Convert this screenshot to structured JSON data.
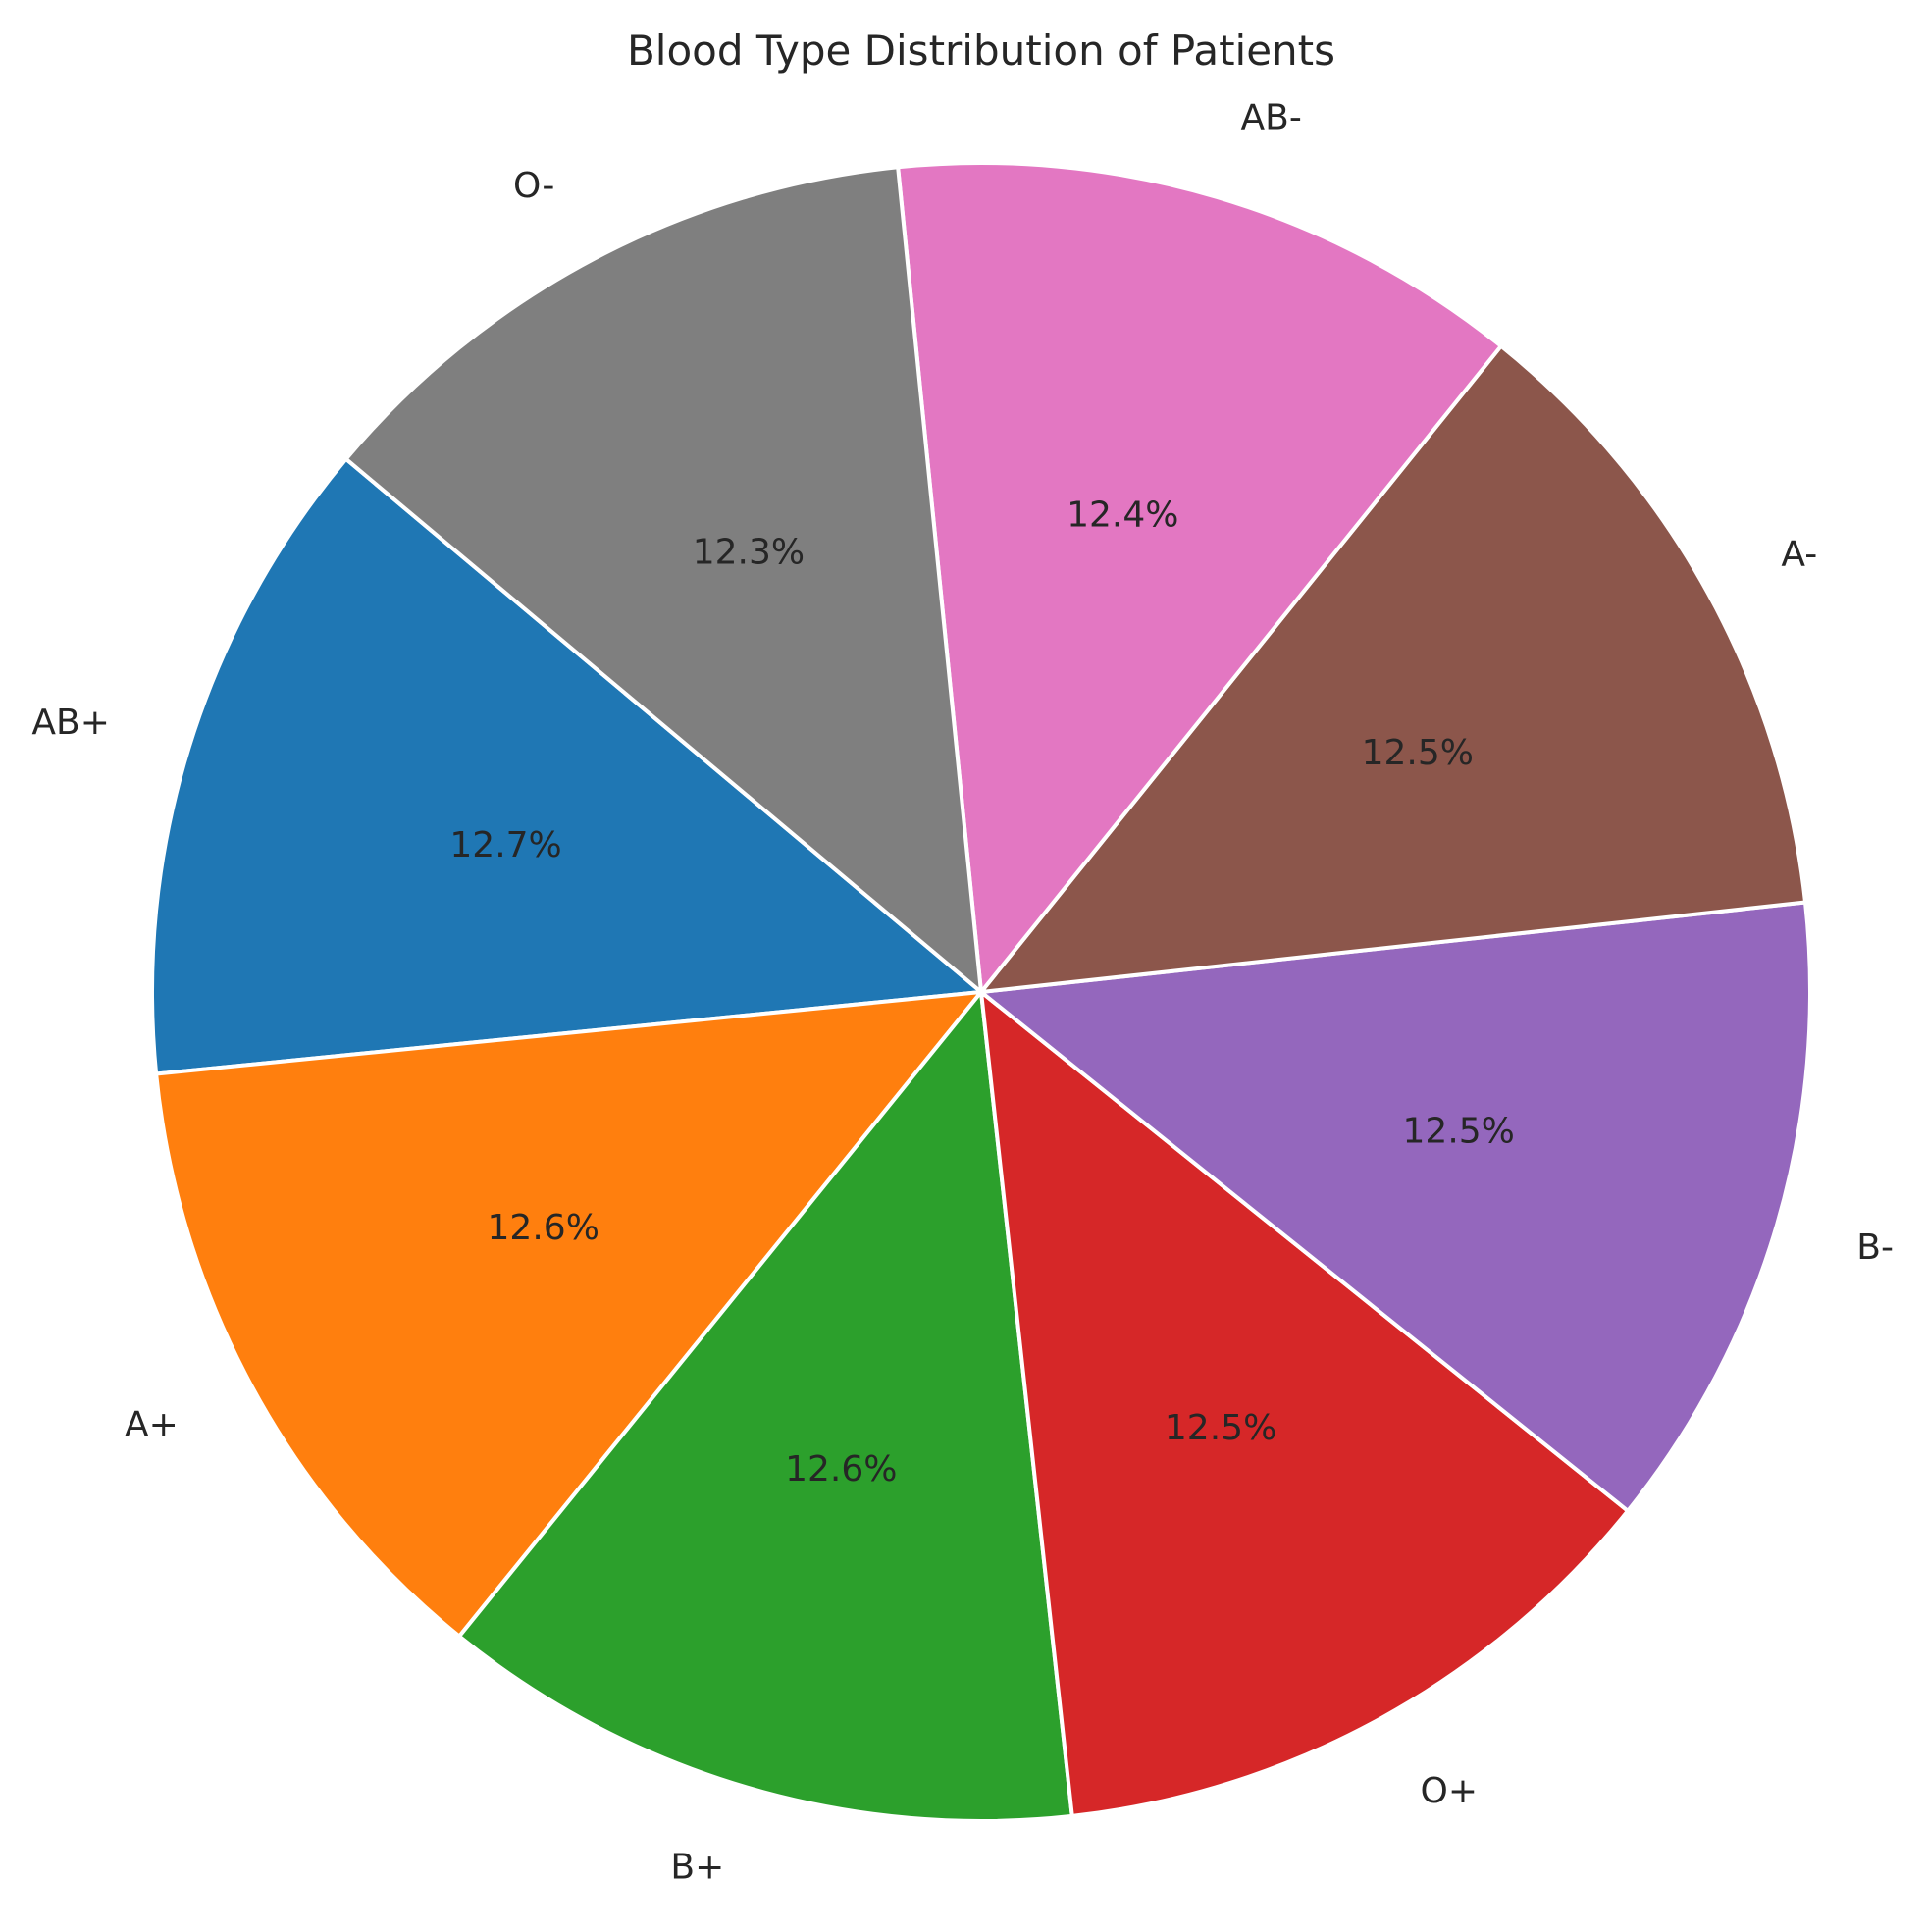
{
  "chart_data": {
    "type": "pie",
    "title": "Blood Type Distribution of Patients",
    "categories": [
      "AB+",
      "A+",
      "B+",
      "O+",
      "B-",
      "A-",
      "AB-",
      "O-"
    ],
    "values": [
      12.7,
      12.6,
      12.6,
      12.5,
      12.5,
      12.5,
      12.4,
      12.3
    ],
    "value_labels": [
      "12.7%",
      "12.6%",
      "12.6%",
      "12.5%",
      "12.5%",
      "12.5%",
      "12.4%",
      "12.3%"
    ],
    "colors": [
      "#1f77b4",
      "#ff7f0e",
      "#2ca02c",
      "#d62728",
      "#9467bd",
      "#8c564b",
      "#e377c2",
      "#7f7f7f"
    ],
    "start_angle_deg": 140,
    "direction": "counterclockwise",
    "edge_color": "#ffffff",
    "legend": "none"
  }
}
